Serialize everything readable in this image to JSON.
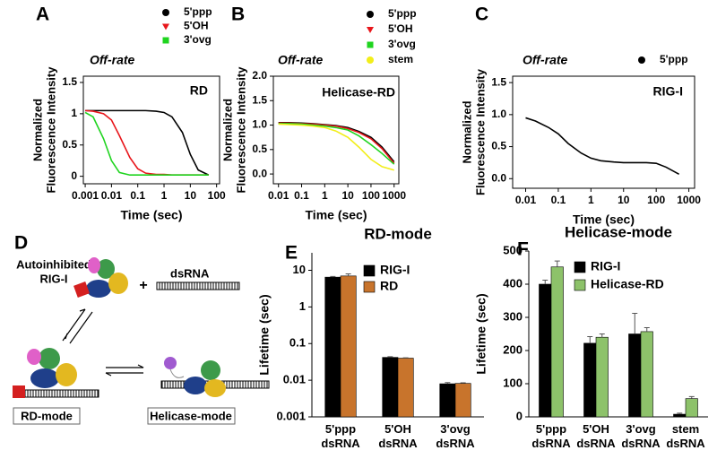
{
  "chart_data": [
    {
      "type": "line",
      "panel_label": "A",
      "annotation": "Off-rate",
      "inner_label": "RD",
      "xlabel": "Time (sec)",
      "ylabel": [
        "Normalized",
        "Fluorescence Intensity"
      ],
      "xlog": true,
      "xlim": [
        0.00085,
        130
      ],
      "xticks": [
        0.001,
        0.01,
        0.1,
        1,
        10,
        100
      ],
      "ylim": [
        -0.12,
        1.6
      ],
      "yticks": [
        0,
        0.5,
        1,
        1.5
      ],
      "legend": "upper right",
      "x": [
        0.001,
        0.002,
        0.005,
        0.01,
        0.02,
        0.05,
        0.1,
        0.2,
        0.5,
        1,
        2,
        5,
        10,
        20,
        50
      ],
      "series": [
        {
          "name": "5'ppp",
          "color": "#000000",
          "marker": "circle",
          "values": [
            1.05,
            1.05,
            1.05,
            1.05,
            1.05,
            1.05,
            1.05,
            1.05,
            1.04,
            1.02,
            0.95,
            0.7,
            0.35,
            0.1,
            0.02
          ]
        },
        {
          "name": "5'OH",
          "color": "#e8161b",
          "marker": "triangle",
          "values": [
            1.05,
            1.04,
            1.0,
            0.9,
            0.65,
            0.3,
            0.12,
            0.05,
            0.03,
            0.03,
            0.02,
            0.02,
            0.02,
            0.02,
            0.02
          ]
        },
        {
          "name": "3'ovg",
          "color": "#1fd41f",
          "marker": "square",
          "values": [
            1.02,
            0.95,
            0.6,
            0.25,
            0.06,
            0.02,
            0.02,
            0.02,
            0.02,
            0.02,
            0.02,
            0.02,
            0.02,
            0.02,
            0.02
          ]
        }
      ]
    },
    {
      "type": "line",
      "panel_label": "B",
      "annotation": "Off-rate",
      "inner_label": "Helicase-RD",
      "xlabel": "Time (sec)",
      "ylabel": [
        "Normalized",
        "Fluorescence Intensity"
      ],
      "xlog": true,
      "xlim": [
        0.006,
        1600
      ],
      "xticks": [
        0.01,
        0.1,
        1,
        10,
        100,
        1000
      ],
      "ylim": [
        -0.2,
        2.0
      ],
      "yticks": [
        {
          "value": 0,
          "label": "0.0"
        },
        0.5,
        {
          "value": 1,
          "label": "1.0"
        },
        1.5,
        {
          "value": 2,
          "label": "2.0"
        }
      ],
      "legend": "upper right",
      "x": [
        0.01,
        0.03,
        0.1,
        0.3,
        1,
        3,
        10,
        30,
        100,
        300,
        1000
      ],
      "series": [
        {
          "name": "5'ppp",
          "color": "#000000",
          "marker": "circle",
          "values": [
            1.05,
            1.05,
            1.04,
            1.03,
            1.01,
            0.99,
            0.95,
            0.87,
            0.75,
            0.55,
            0.25
          ]
        },
        {
          "name": "5'OH",
          "color": "#e8161b",
          "marker": "triangle",
          "values": [
            1.04,
            1.04,
            1.03,
            1.02,
            1.0,
            0.98,
            0.93,
            0.85,
            0.72,
            0.52,
            0.22
          ]
        },
        {
          "name": "3'ovg",
          "color": "#1fd41f",
          "marker": "square",
          "values": [
            1.03,
            1.03,
            1.02,
            1.0,
            0.98,
            0.95,
            0.9,
            0.78,
            0.6,
            0.42,
            0.2
          ]
        },
        {
          "name": "stem",
          "color": "#f2ee1a",
          "marker": "circle",
          "values": [
            1.02,
            1.01,
            1.0,
            0.98,
            0.95,
            0.88,
            0.75,
            0.55,
            0.3,
            0.15,
            0.08
          ]
        }
      ]
    },
    {
      "type": "line",
      "panel_label": "C",
      "annotation": "Off-rate",
      "inner_label": "RIG-I",
      "xlabel": "Time (sec)",
      "ylabel": [
        "Normalized",
        "Fluorescence Intensity"
      ],
      "xlog": true,
      "xlim": [
        0.004,
        1500
      ],
      "xticks": [
        0.01,
        0.1,
        1,
        10,
        100,
        1000
      ],
      "ylim": [
        -0.15,
        1.6
      ],
      "yticks": [
        {
          "value": 0,
          "label": "0.0"
        },
        0.5,
        {
          "value": 1,
          "label": "1.0"
        },
        1.5
      ],
      "legend": "upper right",
      "x": [
        0.01,
        0.02,
        0.05,
        0.1,
        0.2,
        0.5,
        1,
        2,
        5,
        10,
        50,
        100,
        200,
        500
      ],
      "series": [
        {
          "name": "5'ppp",
          "color": "#000000",
          "marker": "circle",
          "values": [
            0.95,
            0.9,
            0.8,
            0.7,
            0.55,
            0.4,
            0.32,
            0.28,
            0.26,
            0.25,
            0.25,
            0.24,
            0.18,
            0.07
          ]
        }
      ]
    },
    {
      "type": "bar",
      "panel_label": "E",
      "title": "RD-mode",
      "ylabel": "Lifetime (sec)",
      "ylog": true,
      "ylim": [
        0.001,
        30
      ],
      "yticks": [
        0.001,
        0.01,
        0.1,
        1,
        10
      ],
      "legend": "upper right",
      "categories": [
        "5'ppp\ndsRNA",
        "5'OH\ndsRNA",
        "3'ovg\ndsRNA"
      ],
      "series": [
        {
          "name": "RIG-I",
          "color": "#000000",
          "values": [
            6.5,
            0.042,
            0.008
          ],
          "errors": [
            0.3,
            0.002,
            0.0006
          ]
        },
        {
          "name": "RD",
          "color": "#c8742c",
          "values": [
            7,
            0.04,
            0.0082
          ],
          "errors": [
            1.0,
            0.001,
            0.0003
          ]
        }
      ]
    },
    {
      "type": "bar",
      "panel_label": "F",
      "title": "Helicase-mode",
      "ylabel": "Lifetime (sec)",
      "ylim": [
        0,
        500
      ],
      "yticks": [
        0,
        100,
        200,
        300,
        400,
        500
      ],
      "legend": "upper right",
      "categories": [
        "5'ppp\ndsRNA",
        "5'OH\ndsRNA",
        "3'ovg\ndsRNA",
        "stem\ndsRNA"
      ],
      "series": [
        {
          "name": "RIG-I",
          "color": "#000000",
          "values": [
            400,
            222,
            250,
            8
          ],
          "errors": [
            12,
            20,
            62,
            3
          ]
        },
        {
          "name": "Helicase-RD",
          "color": "#8dc26a",
          "values": [
            452,
            240,
            257,
            55
          ],
          "errors": [
            18,
            10,
            12,
            6
          ]
        }
      ]
    }
  ],
  "diagram": {
    "panel_label": "D",
    "labels": [
      "Autoinhibited",
      "RIG-I",
      "+",
      "dsRNA",
      "RD-mode",
      "Helicase-mode"
    ]
  }
}
